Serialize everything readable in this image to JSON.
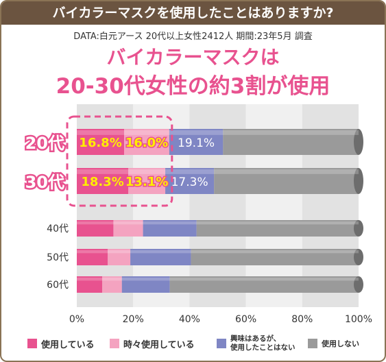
{
  "title_bar": "バイカラーマスクを使用したことはありますか?",
  "source_line": "DATA:白元アース 20代以上女性2412人 期間:23年5月 調査",
  "headline": {
    "line1": "バイカラーマスクは",
    "line2": "20-30代女性の約3割が使用"
  },
  "colors": {
    "use": "#e8528f",
    "sometimes": "#f4a3c0",
    "interested": "#7f86c4",
    "not_use": "#9a9a9a",
    "highlight": "#e8528f",
    "label_yellow": "#ffee00",
    "bg_band_dark": "#e2e2e2",
    "bg_band_light": "#f0f0f0"
  },
  "chart_data": {
    "type": "bar",
    "orientation": "horizontal",
    "stacked": true,
    "categories": [
      "20代",
      "30代",
      "40代",
      "50代",
      "60代"
    ],
    "series": [
      {
        "name": "使用している",
        "values": [
          16.8,
          18.3,
          13.0,
          11.0,
          9.0
        ]
      },
      {
        "name": "時々使用している",
        "values": [
          16.0,
          13.1,
          10.5,
          8.0,
          7.0
        ]
      },
      {
        "name": "興味はあるが、使用したことはない",
        "values": [
          19.1,
          17.3,
          19.0,
          21.5,
          17.0
        ]
      },
      {
        "name": "使用しない",
        "values": [
          48.1,
          51.3,
          57.5,
          59.5,
          67.0
        ]
      }
    ],
    "data_labels": {
      "20代": [
        "16.8%",
        "16.0%",
        "19.1%"
      ],
      "30代": [
        "18.3%",
        "13.1%",
        "17.3%"
      ]
    },
    "xlim": [
      0,
      100
    ],
    "x_ticks": [
      "0%",
      "20%",
      "40%",
      "60%",
      "80%",
      "100%"
    ],
    "highlighted_categories": [
      "20代",
      "30代"
    ],
    "legend_position": "bottom"
  },
  "legend": [
    {
      "key": "use",
      "label": "使用している"
    },
    {
      "key": "sometimes",
      "label": "時々使用している"
    },
    {
      "key": "interested",
      "label_line1": "興味はあるが、",
      "label_line2": "使用したことはない"
    },
    {
      "key": "not_use",
      "label": "使用しない"
    }
  ]
}
